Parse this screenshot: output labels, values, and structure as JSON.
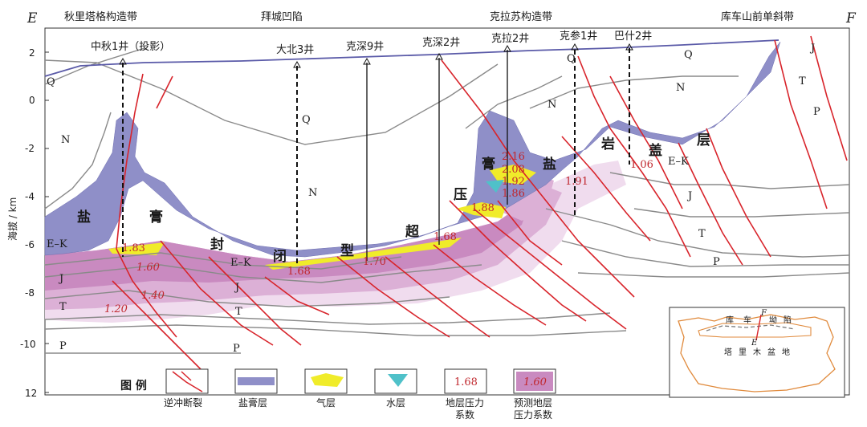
{
  "corners": {
    "left": "E",
    "right": "F"
  },
  "zones": [
    "秋里塔格构造带",
    "拜城凹陷",
    "克拉苏构造带",
    "库车山前单斜带"
  ],
  "wells": [
    "中秋1井（投影）",
    "大北3井",
    "克深9井",
    "克深2井",
    "克拉2井",
    "克参1井",
    "巴什2井"
  ],
  "y_axis": {
    "label": "海拔 / km",
    "ticks": [
      "2",
      "0",
      "-2",
      "-4",
      "-6",
      "-8",
      "-10",
      "12"
    ]
  },
  "formations": {
    "q": "Q",
    "n": "N",
    "ek": "E–K",
    "j": "J",
    "t": "T",
    "p": "P"
  },
  "seal_caption": [
    "盐",
    "膏",
    "封",
    "闭",
    "型",
    "超",
    "压",
    "膏",
    "盐",
    "岩",
    "盖",
    "层"
  ],
  "pressure_values": [
    "1.83",
    "1.68",
    "1.70",
    "1.68",
    "1.88",
    "2.16",
    "2.08",
    "1.92",
    "1.86",
    "1.91",
    "1.06"
  ],
  "predicted_values": [
    "1.60",
    "1.40",
    "1.20"
  ],
  "inset": {
    "labels": [
      "库",
      "车",
      "坳",
      "陷",
      "塔",
      "里",
      "木",
      "盆",
      "地"
    ],
    "e": "E",
    "f": "F"
  },
  "legend": {
    "title": "图 例",
    "items": [
      {
        "label": "逆冲断裂"
      },
      {
        "label": "盐膏层"
      },
      {
        "label": "气层"
      },
      {
        "label": "水层"
      },
      {
        "label_line1": "地层压力",
        "label_line2": "系数",
        "sample": "1.68"
      },
      {
        "label_line1": "预测地层",
        "label_line2": "压力系数",
        "sample": "1.60"
      }
    ]
  },
  "colors": {
    "salt": "#8f8fc8",
    "gas": "#f0ec2a",
    "water": "#4fc1c9",
    "pink_dark": "#c98ac0",
    "pink_mid": "#dcb0d6",
    "pink_light": "#f0dcee",
    "fault": "#d8242b",
    "pressure_text": "#c0272d"
  }
}
